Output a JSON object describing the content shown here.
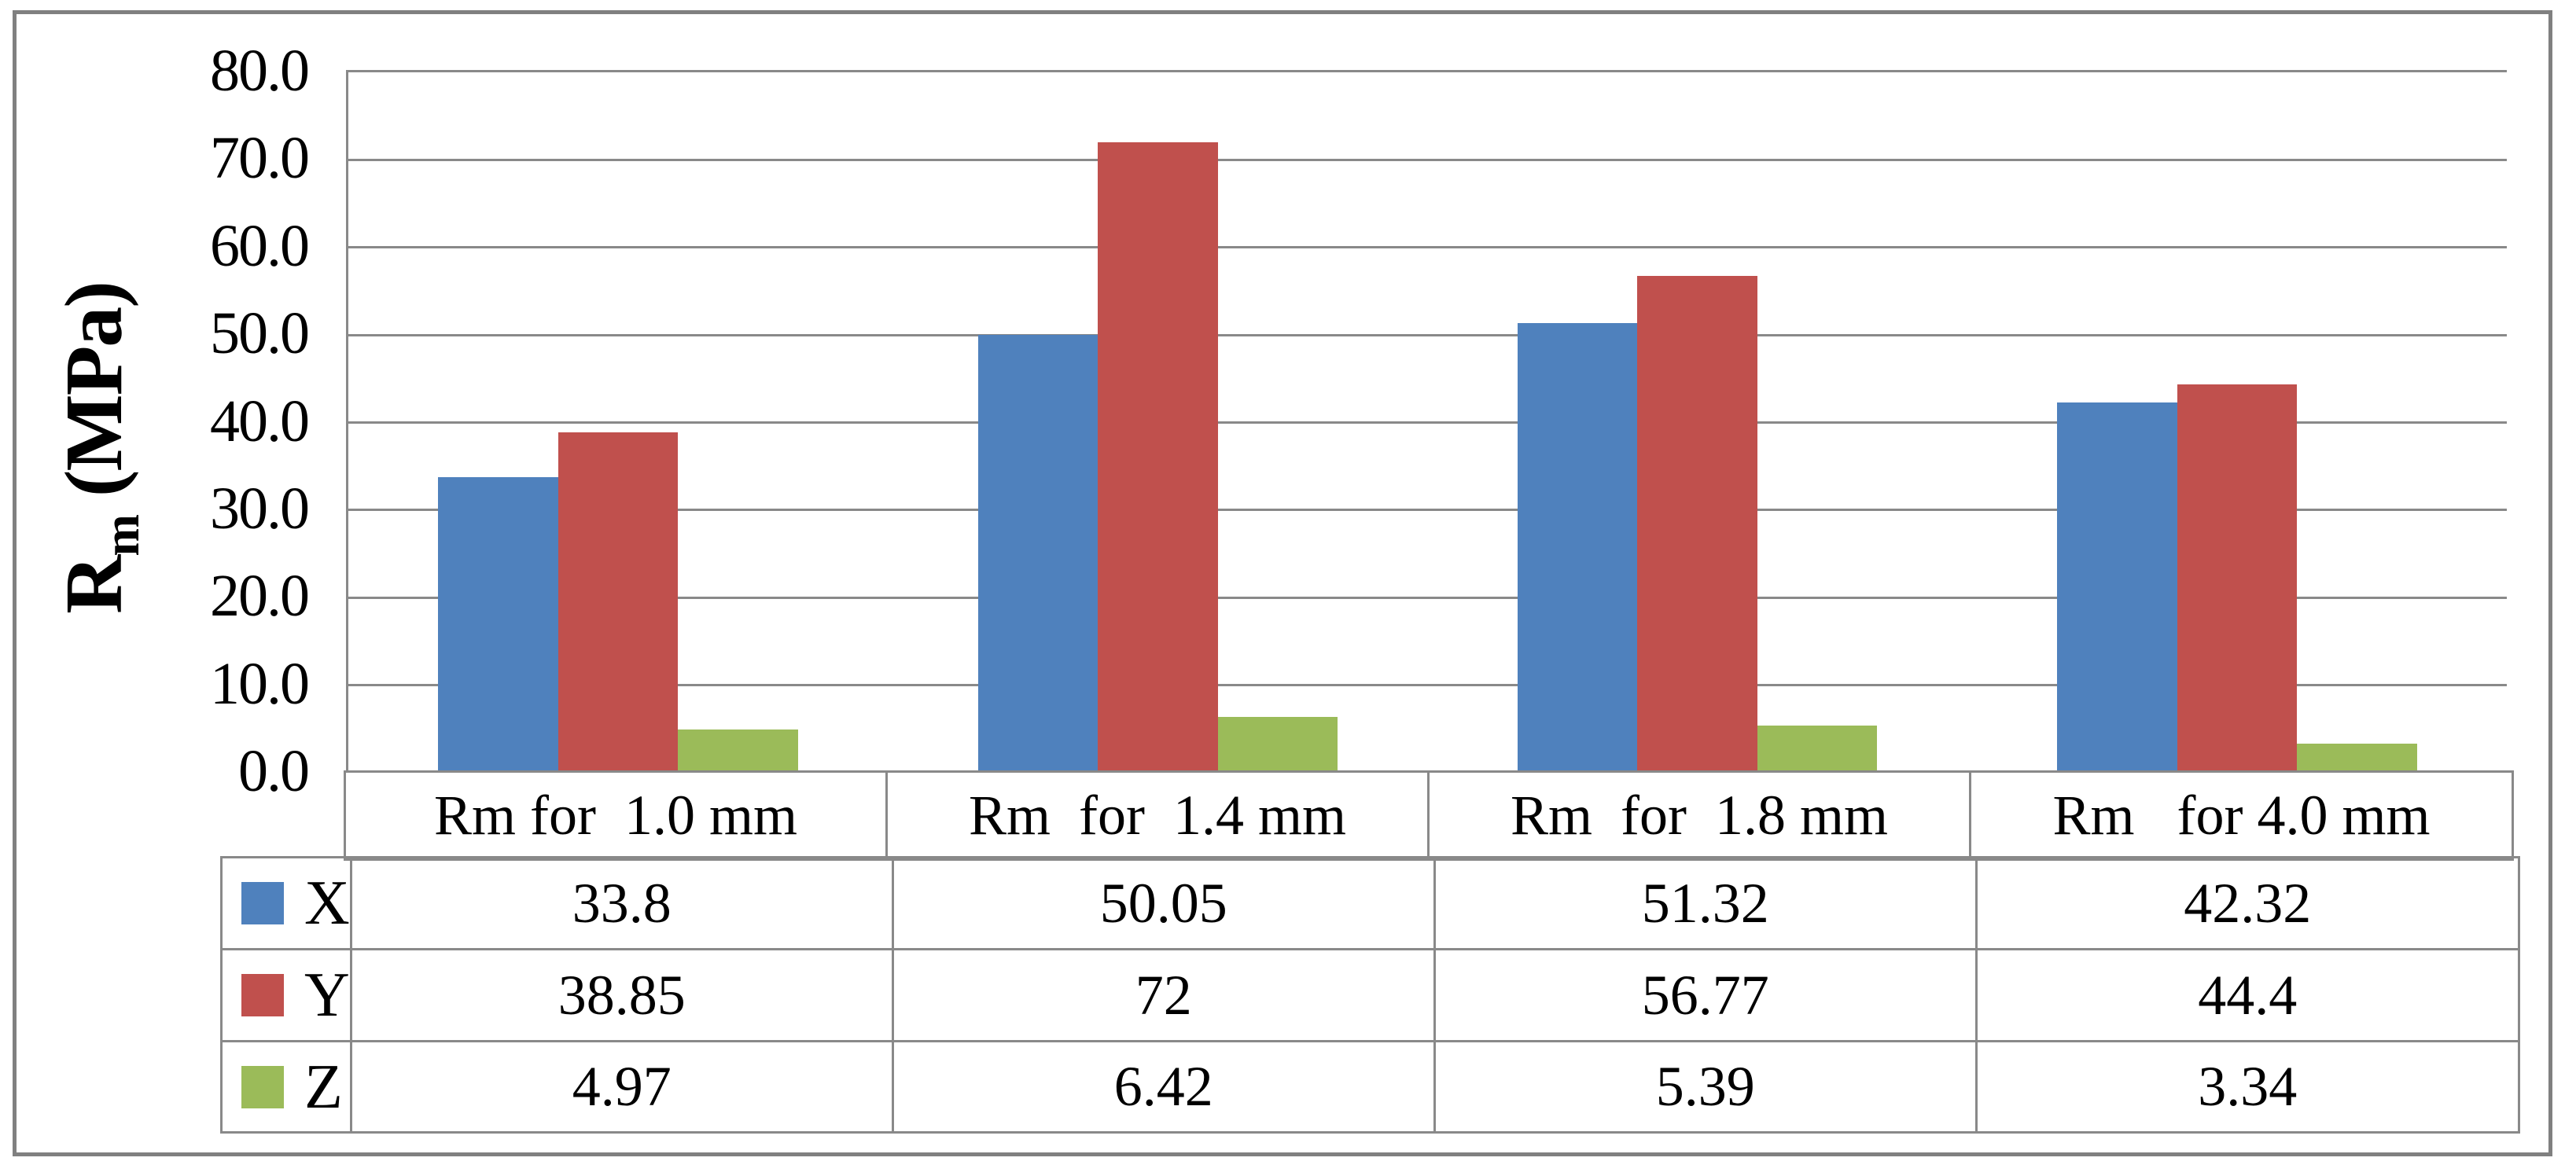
{
  "y_axis": {
    "title_main": "R",
    "title_sub": "m",
    "title_rest": " (MPa)",
    "tick_labels": [
      "80.0",
      "70.0",
      "60.0",
      "50.0",
      "40.0",
      "30.0",
      "20.0",
      "10.0",
      "0.0"
    ]
  },
  "chart_data": {
    "type": "bar",
    "title": "",
    "xlabel": "",
    "ylabel": "Rm (MPa)",
    "ylim": [
      0,
      80
    ],
    "ytick_step": 10,
    "grid": true,
    "legend_position": "table-left",
    "categories": [
      "Rm for  1.0 mm",
      "Rm  for  1.4 mm",
      "Rm  for  1.8 mm",
      "Rm   for 4.0 mm"
    ],
    "series": [
      {
        "name": "X",
        "color": "#4F81BD",
        "values": [
          33.8,
          50.05,
          51.32,
          42.32
        ],
        "value_labels": [
          "33.8",
          "50.05",
          "51.32",
          "42.32"
        ]
      },
      {
        "name": "Y",
        "color": "#C0504D",
        "values": [
          38.85,
          72,
          56.77,
          44.4
        ],
        "value_labels": [
          "38.85",
          "72",
          "56.77",
          "44.4"
        ]
      },
      {
        "name": "Z",
        "color": "#9BBB59",
        "values": [
          4.97,
          6.42,
          5.39,
          3.34
        ],
        "value_labels": [
          "4.97",
          "6.42",
          "5.39",
          "3.34"
        ]
      }
    ]
  },
  "colors": {
    "series_x": "#4F81BD",
    "series_y": "#C0504D",
    "series_z": "#9BBB59",
    "gridline": "#898989",
    "frame": "#808080"
  }
}
